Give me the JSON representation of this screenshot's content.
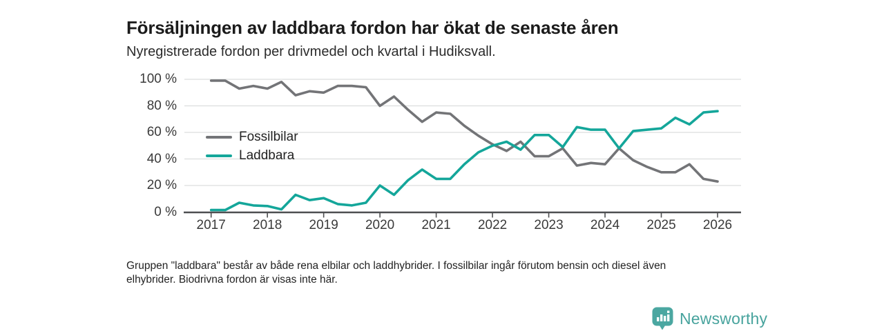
{
  "header": {
    "title": "Försäljningen av laddbara fordon har ökat de senaste åren",
    "subtitle": "Nyregistrerade fordon per drivmedel och kvartal i Hudiksvall."
  },
  "chart_data": {
    "type": "line",
    "title": "Försäljningen av laddbara fordon har ökat de senaste åren",
    "subtitle": "Nyregistrerade fordon per drivmedel och kvartal i Hudiksvall.",
    "x_unit": "quarter",
    "x_range": [
      "2017 Q1",
      "2026 Q1"
    ],
    "x_tick_labels": [
      "2017",
      "2018",
      "2019",
      "2020",
      "2021",
      "2022",
      "2023",
      "2024",
      "2025",
      "2026"
    ],
    "y_tick_labels": [
      "0 %",
      "20 %",
      "40 %",
      "60 %",
      "80 %",
      "100 %"
    ],
    "y_ticks": [
      0,
      20,
      40,
      60,
      80,
      100
    ],
    "ylim": [
      0,
      100
    ],
    "grid": "horizontal",
    "legend_position": "inside-left",
    "series": [
      {
        "name": "Fossilbilar",
        "color": "#737477",
        "values": [
          99,
          99,
          93,
          95,
          93,
          98,
          88,
          91,
          90,
          95,
          95,
          94,
          80,
          87,
          77,
          68,
          75,
          74,
          65,
          57.5,
          51,
          46,
          53,
          42,
          42,
          48,
          35,
          37,
          36,
          48,
          39,
          34,
          30,
          30,
          36,
          25,
          23
        ]
      },
      {
        "name": "Laddbara",
        "color": "#14a69a",
        "values": [
          1.5,
          1.5,
          7,
          5,
          4.5,
          2,
          13,
          9,
          10.5,
          6,
          5,
          7,
          20,
          13,
          24,
          32,
          25,
          25,
          36,
          45,
          50,
          53,
          47,
          58,
          58,
          49,
          64,
          62,
          62,
          48,
          61,
          62,
          63,
          71,
          66,
          75,
          76
        ]
      }
    ]
  },
  "footnote": {
    "line1": "Gruppen \"laddbara\" består av både rena elbilar och laddhybrider. I fossilbilar ingår förutom bensin och diesel även",
    "line2": "elhybrider. Biodrivna fordon är visas inte här."
  },
  "logo": {
    "text": "Newsworthy",
    "badge_color": "#4ba7a1",
    "text_color": "#47a39d"
  }
}
